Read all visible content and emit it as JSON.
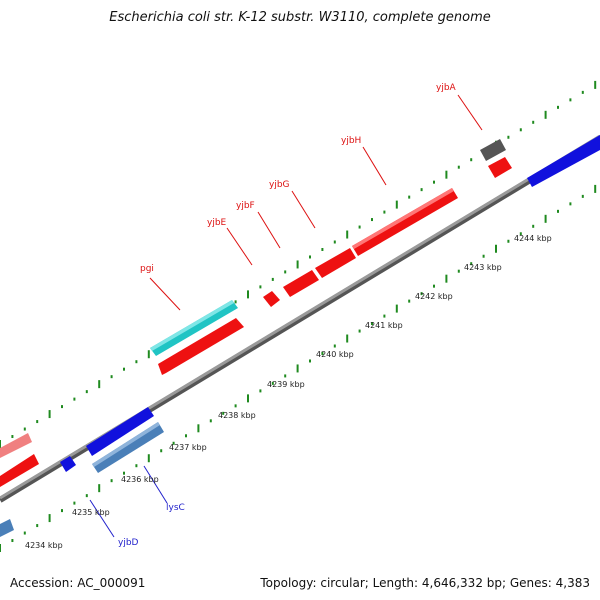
{
  "title": "Escherichia coli str. K-12 substr. W3110, complete genome",
  "footer": {
    "accession": "Accession: AC_000091",
    "stats": "Topology: circular; Length: 4,646,332 bp; Genes: 4,383"
  },
  "colors": {
    "backbone": "#8a8a8a",
    "ticks": "#1f8a1f",
    "label_forward": "#dd1111",
    "label_reverse": "#2222cc"
  },
  "kbp_labels": [
    "4234 kbp",
    "4235 kbp",
    "4236 kbp",
    "4237 kbp",
    "4238 kbp",
    "4239 kbp",
    "4240 kbp",
    "4241 kbp",
    "4242 kbp",
    "4243 kbp",
    "4244 kbp"
  ],
  "genes_forward": [
    {
      "name": "pgi",
      "color": "#28c8c8"
    },
    {
      "name": "yjbE",
      "color": "#ff2020"
    },
    {
      "name": "yjbF",
      "color": "#ff2020"
    },
    {
      "name": "yjbG",
      "color": "#ff2020"
    },
    {
      "name": "yjbH",
      "color": "#ff2020"
    },
    {
      "name": "yjbA",
      "color": "#666666"
    }
  ],
  "genes_reverse": [
    {
      "name": "lysC",
      "color": "#4a7fb8"
    },
    {
      "name": "yjbD",
      "color": "#2222dd"
    }
  ]
}
